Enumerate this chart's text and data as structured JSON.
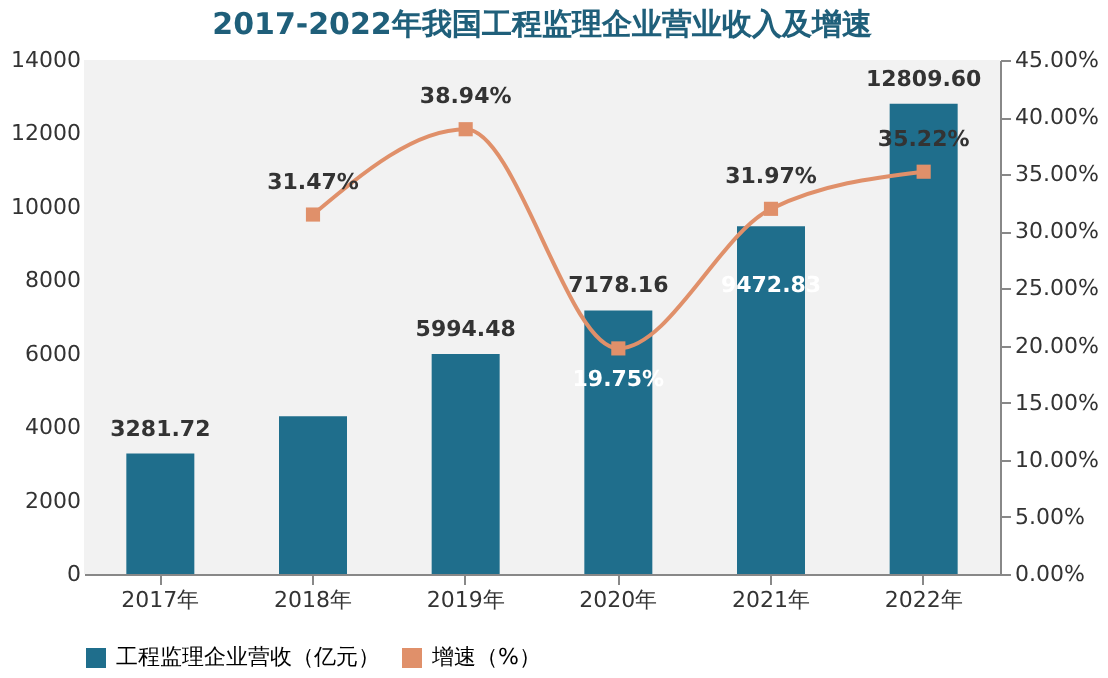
{
  "chart_data": {
    "type": "bar",
    "title": "2017-2022年我国工程监理企业营业收入及增速",
    "categories": [
      "2017年",
      "2018年",
      "2019年",
      "2020年",
      "2021年",
      "2022年"
    ],
    "series": [
      {
        "name": "工程监理企业营收（亿元）",
        "type": "bar",
        "color": "#1f6e8c",
        "values": [
          3281.72,
          4300,
          5994.48,
          7178.16,
          9472.83,
          12809.6
        ],
        "value_labels": [
          "3281.72",
          null,
          "5994.48",
          "7178.16",
          "9472.83",
          "12809.60"
        ]
      },
      {
        "name": "增速（%）",
        "type": "line",
        "axis": "y2",
        "color": "#e0906a",
        "marker": "square",
        "values": [
          null,
          31.47,
          38.94,
          19.75,
          31.97,
          35.22
        ],
        "value_labels": [
          null,
          "31.47%",
          "38.94%",
          "19.75%",
          "31.97%",
          "35.22%"
        ]
      }
    ],
    "ylim": [
      0,
      14000
    ],
    "yticks": [
      0,
      2000,
      4000,
      6000,
      8000,
      10000,
      12000,
      14000
    ],
    "y2lim": [
      0,
      45
    ],
    "y2ticks": [
      {
        "value": 0,
        "label": "0.00%"
      },
      {
        "value": 5,
        "label": "5.00%"
      },
      {
        "value": 10,
        "label": "10.00%"
      },
      {
        "value": 15,
        "label": "15.00%"
      },
      {
        "value": 20,
        "label": "20.00%"
      },
      {
        "value": 25,
        "label": "25.00%"
      },
      {
        "value": 30,
        "label": "30.00%"
      },
      {
        "value": 35,
        "label": "35.00%"
      },
      {
        "value": 40,
        "label": "40.00%"
      },
      {
        "value": 45,
        "label": "45.00%"
      }
    ],
    "grid": false,
    "legend": "bottom"
  }
}
